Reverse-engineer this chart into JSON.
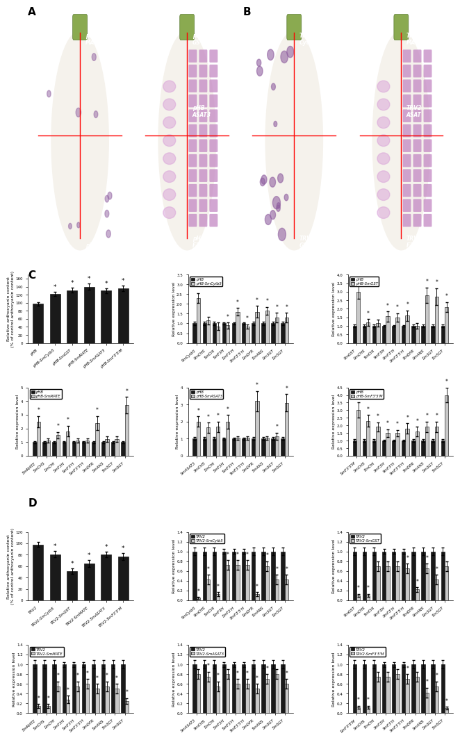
{
  "panel_C_bar1": {
    "ylabel": "Relative anthocyanin content\n(% of control anthocyanin content)",
    "ylim": [
      0,
      170
    ],
    "yticks": [
      0,
      20,
      40,
      60,
      80,
      100,
      120,
      140,
      160
    ],
    "categories": [
      "pHB",
      "pHB-SmCytb5",
      "pHB-SmGST",
      "pHB-SmMATE",
      "pHB-SmASAT3",
      "pHB-SmF3'5'M"
    ],
    "values": [
      97,
      122,
      131,
      140,
      130,
      136
    ],
    "errors": [
      4,
      6,
      6,
      8,
      6,
      7
    ],
    "starred": [
      false,
      true,
      true,
      true,
      true,
      true
    ]
  },
  "panel_C_bar2": {
    "ylabel": "Relative expression level",
    "ylim": [
      0,
      3.5
    ],
    "yticks": [
      0.0,
      0.5,
      1.0,
      1.5,
      2.0,
      2.5,
      3.0,
      3.5
    ],
    "legend1": "pHB",
    "legend2": "pHB-SmCytb5",
    "categories": [
      "SmCytb5",
      "SmCHS",
      "SmCHI",
      "SmF3H",
      "SmF3'H",
      "SmF3'5'H",
      "SmDFR",
      "SmANS",
      "Sm3GT",
      "Sm5GT"
    ],
    "values_dark": [
      1.0,
      1.0,
      1.0,
      1.0,
      1.0,
      1.0,
      1.0,
      1.0,
      1.0,
      1.0
    ],
    "values_light": [
      2.3,
      1.15,
      0.85,
      0.9,
      1.6,
      0.85,
      1.6,
      1.65,
      1.3,
      1.3
    ],
    "errors_dark": [
      0.08,
      0.08,
      0.08,
      0.05,
      0.05,
      0.05,
      0.08,
      0.08,
      0.08,
      0.08
    ],
    "errors_light": [
      0.25,
      0.2,
      0.2,
      0.15,
      0.2,
      0.1,
      0.3,
      0.2,
      0.25,
      0.25
    ],
    "starred_light": [
      true,
      false,
      false,
      true,
      true,
      true,
      true,
      true,
      true,
      true
    ]
  },
  "panel_C_bar3": {
    "ylabel": "Relative expression level",
    "ylim": [
      0,
      4.0
    ],
    "yticks": [
      0.0,
      0.5,
      1.0,
      1.5,
      2.0,
      2.5,
      3.0,
      3.5,
      4.0
    ],
    "legend1": "pHB",
    "legend2": "pHB-SmGST",
    "categories": [
      "SmGST",
      "SmCHS",
      "SmCHI",
      "SmF3H",
      "SmF3'H",
      "SmF3'5'H",
      "SmDFR",
      "SmANS",
      "Sm3GT",
      "Sm5GT"
    ],
    "values_dark": [
      1.0,
      1.0,
      1.0,
      1.0,
      1.0,
      1.0,
      1.0,
      1.0,
      1.0,
      1.0
    ],
    "values_light": [
      3.0,
      1.2,
      1.15,
      1.55,
      1.5,
      1.6,
      1.0,
      2.8,
      2.7,
      2.1
    ],
    "errors_dark": [
      0.08,
      0.08,
      0.08,
      0.05,
      0.05,
      0.05,
      0.08,
      0.08,
      0.08,
      0.08
    ],
    "errors_light": [
      0.4,
      0.2,
      0.2,
      0.3,
      0.25,
      0.3,
      0.15,
      0.45,
      0.5,
      0.3
    ],
    "starred_light": [
      true,
      true,
      false,
      true,
      true,
      true,
      false,
      true,
      true,
      true
    ]
  },
  "panel_C_bar4": {
    "ylabel": "Relative expression level",
    "ylim": [
      0,
      5.0
    ],
    "yticks": [
      0,
      1,
      2,
      3,
      4,
      5
    ],
    "legend1": "pHB",
    "legend2": "pHB-SmMATE",
    "categories": [
      "SmMATE",
      "SmCHS",
      "SmCHI",
      "SmF3H",
      "SmF3'H",
      "SmF3'5'H",
      "SmDFR",
      "SmANS",
      "Sm3GT",
      "Sm5GT"
    ],
    "values_dark": [
      1.0,
      1.0,
      1.0,
      1.0,
      1.0,
      1.0,
      1.0,
      1.0,
      1.0,
      1.0
    ],
    "values_light": [
      2.5,
      1.1,
      1.5,
      1.8,
      1.1,
      1.1,
      2.4,
      1.2,
      1.2,
      3.7
    ],
    "errors_dark": [
      0.08,
      0.08,
      0.08,
      0.05,
      0.05,
      0.05,
      0.08,
      0.08,
      0.08,
      0.08
    ],
    "errors_light": [
      0.4,
      0.15,
      0.25,
      0.4,
      0.15,
      0.15,
      0.5,
      0.2,
      0.2,
      0.6
    ],
    "starred_light": [
      true,
      false,
      true,
      true,
      false,
      false,
      true,
      false,
      false,
      true
    ]
  },
  "panel_C_bar5": {
    "ylabel": "Relative expression level",
    "ylim": [
      0,
      4.0
    ],
    "yticks": [
      0.0,
      1.0,
      2.0,
      3.0,
      4.0
    ],
    "legend1": "pHB",
    "legend2": "pHB-SmASAT3",
    "categories": [
      "SmASAT3",
      "SmCHS",
      "SmCHI",
      "SmF3H",
      "SmF3'H",
      "SmF3'5'H",
      "SmDFR",
      "SmANS",
      "Sm3GT",
      "Sm5GT"
    ],
    "values_dark": [
      1.0,
      1.0,
      1.0,
      1.0,
      1.0,
      1.0,
      1.0,
      1.0,
      1.0,
      1.0
    ],
    "values_light": [
      2.0,
      1.65,
      1.7,
      2.0,
      1.05,
      1.05,
      3.2,
      1.05,
      1.15,
      3.1
    ],
    "errors_dark": [
      0.08,
      0.08,
      0.08,
      0.05,
      0.05,
      0.05,
      0.08,
      0.08,
      0.08,
      0.08
    ],
    "errors_light": [
      0.3,
      0.3,
      0.3,
      0.4,
      0.1,
      0.1,
      0.6,
      0.1,
      0.2,
      0.5
    ],
    "starred_light": [
      true,
      true,
      true,
      true,
      false,
      false,
      true,
      false,
      true,
      true
    ]
  },
  "panel_C_bar6": {
    "ylabel": "Relative expression level",
    "ylim": [
      0,
      4.5
    ],
    "yticks": [
      0.0,
      0.5,
      1.0,
      1.5,
      2.0,
      2.5,
      3.0,
      3.5,
      4.0,
      4.5
    ],
    "legend1": "pHB",
    "legend2": "pHB-SmF3'5'M",
    "categories": [
      "SmF3'5'M",
      "SmCHS",
      "SmCHI",
      "SmF3H",
      "SmF3'H",
      "SmF3'5'H",
      "SmDFR",
      "SmANS",
      "Sm3GT",
      "Sm5GT"
    ],
    "values_dark": [
      1.0,
      1.0,
      1.0,
      1.0,
      1.0,
      1.0,
      1.0,
      1.0,
      1.0,
      1.0
    ],
    "values_light": [
      3.0,
      2.3,
      1.9,
      1.5,
      1.5,
      1.8,
      1.6,
      1.9,
      1.9,
      4.0
    ],
    "errors_dark": [
      0.08,
      0.08,
      0.08,
      0.05,
      0.05,
      0.05,
      0.08,
      0.08,
      0.08,
      0.08
    ],
    "errors_light": [
      0.5,
      0.4,
      0.3,
      0.25,
      0.2,
      0.35,
      0.3,
      0.35,
      0.35,
      0.5
    ],
    "starred_light": [
      true,
      true,
      true,
      true,
      true,
      true,
      true,
      true,
      true,
      true
    ]
  },
  "panel_D_bar1": {
    "ylabel": "Relative anthocyanin content\n(% of control anthocyanin content)",
    "ylim": [
      0,
      120
    ],
    "yticks": [
      0,
      20,
      40,
      60,
      80,
      100,
      120
    ],
    "categories": [
      "TRV2",
      "TRV2-SmCytb5",
      "TRV2-SmGST",
      "TRV2-SmMATE",
      "TRV2-SmASAT3",
      "TRV2-SmF3'5'M"
    ],
    "values": [
      98,
      81,
      51,
      65,
      80,
      77
    ],
    "errors": [
      4,
      6,
      5,
      6,
      5,
      6
    ],
    "starred": [
      false,
      true,
      true,
      true,
      true,
      true
    ]
  },
  "panel_D_bar2": {
    "ylabel": "Relative expression level",
    "ylim": [
      0,
      1.4
    ],
    "yticks": [
      0.0,
      0.2,
      0.4,
      0.6,
      0.8,
      1.0,
      1.2,
      1.4
    ],
    "legend1": "TRV2",
    "legend2": "TRV2-SmCytb5",
    "categories": [
      "SmCytb5",
      "SmCHS",
      "SmCHI",
      "SmF3H",
      "SmF3'H",
      "SmF3'5'H",
      "SmDFR",
      "SmANS",
      "Sm3GT",
      "Sm5GT"
    ],
    "values_dark": [
      1.0,
      1.0,
      1.0,
      1.0,
      1.0,
      1.0,
      1.0,
      1.0,
      1.0,
      1.0
    ],
    "values_light": [
      0.05,
      0.42,
      0.13,
      0.72,
      0.72,
      0.72,
      0.13,
      0.7,
      0.42,
      0.42
    ],
    "errors_dark": [
      0.08,
      0.08,
      0.08,
      0.05,
      0.05,
      0.05,
      0.08,
      0.08,
      0.08,
      0.08
    ],
    "errors_light": [
      0.02,
      0.1,
      0.04,
      0.1,
      0.1,
      0.1,
      0.04,
      0.1,
      0.1,
      0.1
    ],
    "starred_light": [
      true,
      true,
      true,
      true,
      true,
      true,
      true,
      true,
      true,
      true
    ]
  },
  "panel_D_bar3": {
    "ylabel": "Relative expression level",
    "ylim": [
      0,
      1.4
    ],
    "yticks": [
      0.0,
      0.2,
      0.4,
      0.6,
      0.8,
      1.0,
      1.2,
      1.4
    ],
    "legend1": "TRV2",
    "legend2": "TRV2-SmGST",
    "categories": [
      "SmGST",
      "SmCHS",
      "SmCHI",
      "SmF3H",
      "SmF3'H",
      "SmF3'5'H",
      "SmDFR",
      "SmANS",
      "Sm3GT",
      "Sm5GT"
    ],
    "values_dark": [
      1.0,
      1.0,
      1.0,
      1.0,
      1.0,
      1.0,
      1.0,
      1.0,
      1.0,
      1.0
    ],
    "values_light": [
      0.1,
      0.1,
      0.7,
      0.7,
      0.7,
      0.65,
      0.22,
      0.65,
      0.42,
      0.7
    ],
    "errors_dark": [
      0.08,
      0.08,
      0.08,
      0.05,
      0.05,
      0.05,
      0.08,
      0.08,
      0.08,
      0.08
    ],
    "errors_light": [
      0.03,
      0.03,
      0.1,
      0.1,
      0.1,
      0.1,
      0.05,
      0.1,
      0.1,
      0.1
    ],
    "starred_light": [
      true,
      true,
      false,
      false,
      false,
      true,
      true,
      true,
      true,
      false
    ]
  },
  "panel_D_bar4": {
    "ylabel": "Relative expression level",
    "ylim": [
      0,
      1.4
    ],
    "yticks": [
      0.0,
      0.2,
      0.4,
      0.6,
      0.8,
      1.0,
      1.2,
      1.4
    ],
    "legend1": "TRV2",
    "legend2": "TRV2-SmMATE",
    "categories": [
      "SmMATE",
      "SmCHS",
      "SmCHI",
      "SmF3H",
      "SmF3'H",
      "SmF3'5'H",
      "SmDFR",
      "SmANS",
      "Sm3GT",
      "Sm5GT"
    ],
    "values_dark": [
      1.0,
      1.0,
      1.0,
      1.0,
      1.0,
      1.0,
      1.0,
      1.0,
      1.0,
      1.0
    ],
    "values_light": [
      0.15,
      0.15,
      0.55,
      0.28,
      0.55,
      0.6,
      0.5,
      0.55,
      0.5,
      0.25
    ],
    "errors_dark": [
      0.08,
      0.08,
      0.08,
      0.05,
      0.05,
      0.05,
      0.08,
      0.08,
      0.08,
      0.08
    ],
    "errors_light": [
      0.04,
      0.04,
      0.1,
      0.08,
      0.1,
      0.1,
      0.1,
      0.1,
      0.1,
      0.06
    ],
    "starred_light": [
      true,
      true,
      true,
      true,
      true,
      true,
      true,
      true,
      true,
      true
    ]
  },
  "panel_D_bar5": {
    "ylabel": "Relative expression level",
    "ylim": [
      0,
      1.4
    ],
    "yticks": [
      0.0,
      0.2,
      0.4,
      0.6,
      0.8,
      1.0,
      1.2,
      1.4
    ],
    "legend1": "TRV2",
    "legend2": "TRV2-SmASAT3",
    "categories": [
      "SmASAT3",
      "SmCHS",
      "SmCHI",
      "SmF3H",
      "SmF3'H",
      "SmF3'5'H",
      "SmDFR",
      "SmANS",
      "Sm3GT",
      "Sm5GT"
    ],
    "values_dark": [
      1.0,
      1.0,
      1.0,
      1.0,
      1.0,
      1.0,
      1.0,
      1.0,
      1.0,
      1.0
    ],
    "values_light": [
      0.8,
      0.75,
      0.55,
      0.8,
      0.6,
      0.6,
      0.5,
      0.7,
      0.8,
      0.6
    ],
    "errors_dark": [
      0.08,
      0.08,
      0.08,
      0.05,
      0.05,
      0.05,
      0.08,
      0.08,
      0.08,
      0.08
    ],
    "errors_light": [
      0.1,
      0.1,
      0.1,
      0.1,
      0.1,
      0.1,
      0.1,
      0.1,
      0.1,
      0.1
    ],
    "starred_light": [
      false,
      true,
      true,
      false,
      true,
      true,
      true,
      true,
      false,
      true
    ]
  },
  "panel_D_bar6": {
    "ylabel": "Relative expression level",
    "ylim": [
      0,
      1.4
    ],
    "yticks": [
      0.0,
      0.2,
      0.4,
      0.6,
      0.8,
      1.0,
      1.2,
      1.4
    ],
    "legend1": "TRV2",
    "legend2": "TRV2-SmF3'5'M",
    "categories": [
      "SmF3'5'M",
      "SmCHS",
      "SmCHI",
      "SmF3H",
      "SmF3'H",
      "SmF3'5'H",
      "SmDFR",
      "SmANS",
      "Sm3GT",
      "Sm5GT"
    ],
    "values_dark": [
      1.0,
      1.0,
      1.0,
      1.0,
      1.0,
      1.0,
      1.0,
      1.0,
      1.0,
      1.0
    ],
    "values_light": [
      0.12,
      0.12,
      0.75,
      0.75,
      0.8,
      0.7,
      0.75,
      0.42,
      0.55,
      0.1
    ],
    "errors_dark": [
      0.08,
      0.08,
      0.08,
      0.05,
      0.05,
      0.05,
      0.08,
      0.08,
      0.08,
      0.08
    ],
    "errors_light": [
      0.03,
      0.03,
      0.1,
      0.1,
      0.1,
      0.1,
      0.1,
      0.1,
      0.1,
      0.03
    ],
    "starred_light": [
      true,
      true,
      false,
      false,
      false,
      true,
      false,
      true,
      true,
      true
    ]
  },
  "dark_color": "#1a1a1a",
  "light_color": "#c8c8c8",
  "background_color": "#ffffff",
  "photo_bg_color": "#111111"
}
